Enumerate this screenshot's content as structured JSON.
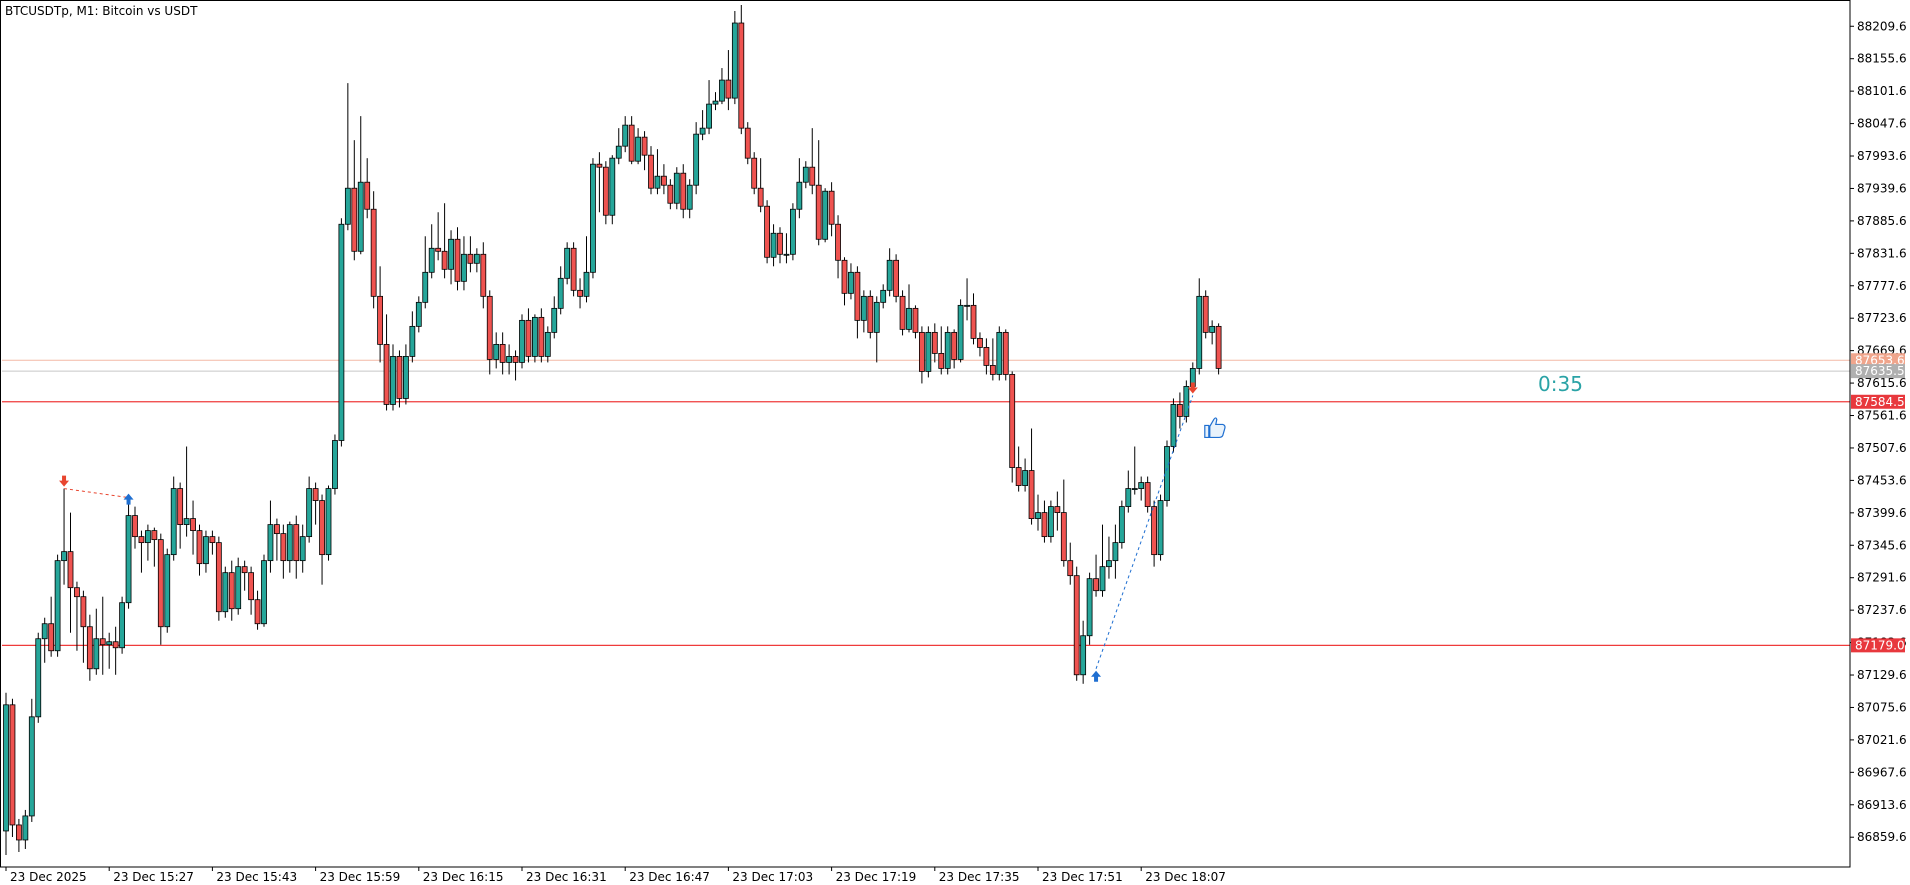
{
  "symbol_title": "BTCUSDTp, M1:  Bitcoin vs USDT",
  "countdown": "0:35",
  "colors": {
    "bull": "#26a69a",
    "bear": "#ef5350",
    "wick": "#000000",
    "level_line": "#ef3b3b",
    "ask_line": "#f4b9a6",
    "bid_line": "#c8c8c8",
    "ask_tag": "#f0a58c",
    "bid_tag": "#b0b0b0",
    "level_tag": "#e8383d",
    "buy_arrow": "#1f6fd1",
    "sell_arrow": "#e8452f"
  },
  "chart_data": {
    "type": "candlestick",
    "ylim": [
      86810,
      88250
    ],
    "y_ticks": [
      "88209.6",
      "88155.6",
      "88101.6",
      "88047.6",
      "87993.6",
      "87939.6",
      "87885.6",
      "87831.6",
      "87777.6",
      "87723.6",
      "87669.6",
      "87615.6",
      "87561.6",
      "87507.6",
      "87453.6",
      "87399.6",
      "87345.6",
      "87291.6",
      "87237.6",
      "87183.6",
      "87129.6",
      "87075.6",
      "87021.6",
      "86967.6",
      "86913.6",
      "86859.6"
    ],
    "time_labels": [
      "23 Dec 2025",
      "23 Dec 15:27",
      "23 Dec 15:43",
      "23 Dec 15:59",
      "23 Dec 16:15",
      "23 Dec 16:31",
      "23 Dec 16:47",
      "23 Dec 17:03",
      "23 Dec 17:19",
      "23 Dec 17:35",
      "23 Dec 17:51",
      "23 Dec 18:07"
    ],
    "levels": [
      {
        "price": 87584.5,
        "label": "87584.5",
        "kind": "level"
      },
      {
        "price": 87179.0,
        "label": "87179.0",
        "kind": "level"
      }
    ],
    "ask_price": {
      "price": 87653.6,
      "label": "87653.6"
    },
    "bid_price": {
      "price": 87635.5,
      "label": "87635.5"
    },
    "trades": [
      {
        "entry_index": 9,
        "entry_price": 87440,
        "exit_index": 19,
        "exit_price": 87425,
        "entry": "sell",
        "exit": "buy"
      },
      {
        "entry_index": 169,
        "entry_price": 87140,
        "exit_index": 184,
        "exit_price": 87595,
        "entry": "buy",
        "exit": "sell"
      }
    ],
    "candles": [
      [
        86870,
        87080,
        86830,
        87100
      ],
      [
        87080,
        86880,
        86860,
        87090
      ],
      [
        86880,
        86855,
        86835,
        86890
      ],
      [
        86855,
        86895,
        86840,
        86905
      ],
      [
        86895,
        87060,
        86885,
        87090
      ],
      [
        87060,
        87190,
        87050,
        87200
      ],
      [
        87190,
        87215,
        87150,
        87225
      ],
      [
        87215,
        87170,
        87160,
        87260
      ],
      [
        87170,
        87320,
        87160,
        87330
      ],
      [
        87320,
        87335,
        87280,
        87440
      ],
      [
        87335,
        87275,
        87200,
        87400
      ],
      [
        87275,
        87260,
        87170,
        87285
      ],
      [
        87260,
        87210,
        87150,
        87270
      ],
      [
        87210,
        87140,
        87120,
        87230
      ],
      [
        87140,
        87190,
        87130,
        87240
      ],
      [
        87190,
        87180,
        87130,
        87260
      ],
      [
        87180,
        87185,
        87140,
        87200
      ],
      [
        87185,
        87175,
        87130,
        87210
      ],
      [
        87175,
        87250,
        87165,
        87260
      ],
      [
        87250,
        87395,
        87240,
        87425
      ],
      [
        87395,
        87360,
        87340,
        87410
      ],
      [
        87360,
        87350,
        87300,
        87370
      ],
      [
        87350,
        87370,
        87320,
        87380
      ],
      [
        87370,
        87355,
        87310,
        87375
      ],
      [
        87355,
        87210,
        87180,
        87365
      ],
      [
        87210,
        87330,
        87200,
        87340
      ],
      [
        87330,
        87440,
        87320,
        87460
      ],
      [
        87440,
        87380,
        87340,
        87450
      ],
      [
        87380,
        87390,
        87360,
        87510
      ],
      [
        87390,
        87370,
        87330,
        87420
      ],
      [
        87370,
        87315,
        87295,
        87380
      ],
      [
        87315,
        87360,
        87300,
        87370
      ],
      [
        87360,
        87350,
        87330,
        87370
      ],
      [
        87350,
        87235,
        87220,
        87360
      ],
      [
        87235,
        87300,
        87225,
        87310
      ],
      [
        87300,
        87240,
        87220,
        87320
      ],
      [
        87240,
        87310,
        87230,
        87325
      ],
      [
        87310,
        87300,
        87270,
        87320
      ],
      [
        87300,
        87255,
        87230,
        87310
      ],
      [
        87255,
        87215,
        87205,
        87270
      ],
      [
        87215,
        87320,
        87210,
        87330
      ],
      [
        87320,
        87380,
        87300,
        87420
      ],
      [
        87380,
        87365,
        87320,
        87390
      ],
      [
        87365,
        87320,
        87290,
        87380
      ],
      [
        87320,
        87380,
        87300,
        87385
      ],
      [
        87380,
        87320,
        87290,
        87395
      ],
      [
        87320,
        87360,
        87300,
        87380
      ],
      [
        87360,
        87440,
        87350,
        87460
      ],
      [
        87440,
        87420,
        87380,
        87450
      ],
      [
        87420,
        87330,
        87280,
        87430
      ],
      [
        87330,
        87440,
        87320,
        87445
      ],
      [
        87440,
        87520,
        87430,
        87530
      ],
      [
        87520,
        87880,
        87510,
        87890
      ],
      [
        87880,
        87940,
        87870,
        88115
      ],
      [
        87940,
        87835,
        87820,
        88020
      ],
      [
        87835,
        87950,
        87830,
        88060
      ],
      [
        87950,
        87905,
        87890,
        87990
      ],
      [
        87905,
        87760,
        87740,
        87935
      ],
      [
        87760,
        87680,
        87650,
        87810
      ],
      [
        87680,
        87580,
        87570,
        87730
      ],
      [
        87580,
        87660,
        87570,
        87680
      ],
      [
        87660,
        87590,
        87575,
        87670
      ],
      [
        87590,
        87660,
        87580,
        87680
      ],
      [
        87660,
        87710,
        87650,
        87735
      ],
      [
        87710,
        87750,
        87700,
        87760
      ],
      [
        87750,
        87800,
        87740,
        87860
      ],
      [
        87800,
        87840,
        87790,
        87880
      ],
      [
        87840,
        87835,
        87820,
        87900
      ],
      [
        87835,
        87805,
        87790,
        87915
      ],
      [
        87805,
        87855,
        87780,
        87870
      ],
      [
        87855,
        87785,
        87770,
        87875
      ],
      [
        87785,
        87830,
        87770,
        87860
      ],
      [
        87830,
        87815,
        87800,
        87860
      ],
      [
        87815,
        87830,
        87800,
        87840
      ],
      [
        87830,
        87760,
        87740,
        87850
      ],
      [
        87760,
        87655,
        87630,
        87770
      ],
      [
        87655,
        87680,
        87640,
        87700
      ],
      [
        87680,
        87650,
        87630,
        87700
      ],
      [
        87650,
        87660,
        87630,
        87680
      ],
      [
        87660,
        87650,
        87620,
        87670
      ],
      [
        87650,
        87720,
        87640,
        87730
      ],
      [
        87720,
        87660,
        87650,
        87740
      ],
      [
        87660,
        87725,
        87650,
        87730
      ],
      [
        87725,
        87660,
        87650,
        87740
      ],
      [
        87660,
        87700,
        87650,
        87710
      ],
      [
        87700,
        87740,
        87690,
        87760
      ],
      [
        87740,
        87790,
        87730,
        87810
      ],
      [
        87790,
        87840,
        87780,
        87850
      ],
      [
        87840,
        87770,
        87760,
        87850
      ],
      [
        87770,
        87760,
        87740,
        87790
      ],
      [
        87760,
        87800,
        87750,
        87860
      ],
      [
        87800,
        87980,
        87790,
        87990
      ],
      [
        87980,
        87975,
        87900,
        88000
      ],
      [
        87975,
        87895,
        87880,
        87985
      ],
      [
        87895,
        87990,
        87880,
        87995
      ],
      [
        87990,
        88010,
        87980,
        88040
      ],
      [
        88010,
        88045,
        88000,
        88060
      ],
      [
        88045,
        87985,
        87980,
        88060
      ],
      [
        87985,
        88025,
        87980,
        88040
      ],
      [
        88025,
        87995,
        87970,
        88035
      ],
      [
        87995,
        87940,
        87930,
        88010
      ],
      [
        87940,
        87960,
        87930,
        88005
      ],
      [
        87960,
        87945,
        87930,
        87980
      ],
      [
        87945,
        87915,
        87905,
        87955
      ],
      [
        87915,
        87965,
        87905,
        87975
      ],
      [
        87965,
        87905,
        87890,
        87980
      ],
      [
        87905,
        87945,
        87890,
        87955
      ],
      [
        87945,
        88030,
        87930,
        88050
      ],
      [
        88030,
        88040,
        88020,
        88070
      ],
      [
        88040,
        88080,
        88030,
        88120
      ],
      [
        88080,
        88085,
        88070,
        88100
      ],
      [
        88085,
        88120,
        88080,
        88140
      ],
      [
        88120,
        88090,
        88070,
        88170
      ],
      [
        88090,
        88215,
        88080,
        88235
      ],
      [
        88215,
        88040,
        88030,
        88245
      ],
      [
        88040,
        87990,
        87980,
        88050
      ],
      [
        87990,
        87940,
        87930,
        88000
      ],
      [
        87940,
        87910,
        87900,
        87990
      ],
      [
        87910,
        87825,
        87815,
        87920
      ],
      [
        87825,
        87865,
        87810,
        87880
      ],
      [
        87865,
        87830,
        87815,
        87875
      ],
      [
        87830,
        87830,
        87815,
        87865
      ],
      [
        87830,
        87905,
        87820,
        87915
      ],
      [
        87905,
        87950,
        87890,
        87990
      ],
      [
        87950,
        87975,
        87940,
        87985
      ],
      [
        87975,
        87945,
        87930,
        88040
      ],
      [
        87945,
        87855,
        87845,
        88020
      ],
      [
        87855,
        87935,
        87850,
        87940
      ],
      [
        87935,
        87880,
        87860,
        87950
      ],
      [
        87880,
        87820,
        87790,
        87895
      ],
      [
        87820,
        87765,
        87745,
        87825
      ],
      [
        87765,
        87800,
        87755,
        87815
      ],
      [
        87800,
        87720,
        87690,
        87810
      ],
      [
        87720,
        87760,
        87700,
        87770
      ],
      [
        87760,
        87700,
        87690,
        87770
      ],
      [
        87700,
        87750,
        87650,
        87760
      ],
      [
        87750,
        87770,
        87740,
        87780
      ],
      [
        87770,
        87820,
        87760,
        87840
      ],
      [
        87820,
        87760,
        87750,
        87830
      ],
      [
        87760,
        87705,
        87695,
        87770
      ],
      [
        87705,
        87740,
        87700,
        87780
      ],
      [
        87740,
        87700,
        87690,
        87745
      ],
      [
        87700,
        87635,
        87615,
        87710
      ],
      [
        87635,
        87700,
        87625,
        87710
      ],
      [
        87700,
        87665,
        87650,
        87715
      ],
      [
        87665,
        87640,
        87630,
        87710
      ],
      [
        87640,
        87700,
        87630,
        87710
      ],
      [
        87700,
        87655,
        87640,
        87705
      ],
      [
        87655,
        87745,
        87650,
        87755
      ],
      [
        87745,
        87745,
        87720,
        87790
      ],
      [
        87745,
        87690,
        87680,
        87765
      ],
      [
        87690,
        87675,
        87660,
        87700
      ],
      [
        87675,
        87645,
        87630,
        87690
      ],
      [
        87645,
        87630,
        87620,
        87690
      ],
      [
        87630,
        87700,
        87620,
        87710
      ],
      [
        87700,
        87630,
        87620,
        87705
      ],
      [
        87630,
        87475,
        87450,
        87635
      ],
      [
        87475,
        87445,
        87435,
        87510
      ],
      [
        87445,
        87470,
        87435,
        87490
      ],
      [
        87470,
        87390,
        87380,
        87540
      ],
      [
        87390,
        87400,
        87370,
        87430
      ],
      [
        87400,
        87360,
        87350,
        87420
      ],
      [
        87360,
        87410,
        87350,
        87420
      ],
      [
        87410,
        87400,
        87370,
        87435
      ],
      [
        87400,
        87320,
        87310,
        87455
      ],
      [
        87320,
        87295,
        87280,
        87350
      ],
      [
        87295,
        87130,
        87120,
        87310
      ],
      [
        87130,
        87195,
        87115,
        87220
      ],
      [
        87195,
        87290,
        87180,
        87300
      ],
      [
        87290,
        87270,
        87260,
        87330
      ],
      [
        87270,
        87310,
        87260,
        87380
      ],
      [
        87310,
        87320,
        87290,
        87360
      ],
      [
        87320,
        87350,
        87290,
        87380
      ],
      [
        87350,
        87410,
        87340,
        87420
      ],
      [
        87410,
        87440,
        87400,
        87470
      ],
      [
        87440,
        87440,
        87430,
        87510
      ],
      [
        87440,
        87450,
        87420,
        87460
      ],
      [
        87450,
        87410,
        87400,
        87460
      ],
      [
        87410,
        87330,
        87310,
        87420
      ],
      [
        87330,
        87420,
        87320,
        87430
      ],
      [
        87420,
        87510,
        87410,
        87520
      ],
      [
        87510,
        87580,
        87500,
        87590
      ],
      [
        87580,
        87560,
        87540,
        87600
      ],
      [
        87560,
        87610,
        87550,
        87620
      ],
      [
        87610,
        87640,
        87600,
        87650
      ],
      [
        87640,
        87760,
        87630,
        87790
      ],
      [
        87760,
        87700,
        87690,
        87770
      ],
      [
        87700,
        87710,
        87680,
        87720
      ],
      [
        87710,
        87640,
        87630,
        87715
      ]
    ]
  }
}
